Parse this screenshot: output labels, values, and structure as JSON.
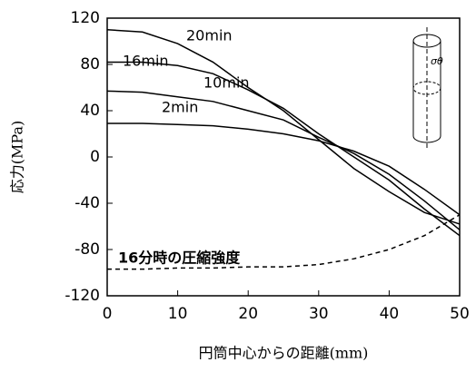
{
  "chart_data": {
    "type": "line",
    "x_label": "円筒中心からの距離(mm)",
    "y_label": "応力(MPa)",
    "x": [
      0,
      5,
      10,
      15,
      20,
      25,
      30,
      35,
      40,
      45,
      50
    ],
    "series": [
      {
        "name": "20min",
        "color": "#000000",
        "dash": false,
        "values": [
          110,
          108,
          98,
          82,
          60,
          40,
          15,
          -10,
          -30,
          -48,
          -58
        ]
      },
      {
        "name": "16min",
        "color": "#000000",
        "dash": false,
        "values": [
          82,
          82,
          79,
          72,
          58,
          42,
          20,
          0,
          -20,
          -45,
          -68
        ]
      },
      {
        "name": "10min",
        "color": "#000000",
        "dash": false,
        "values": [
          57,
          56,
          52,
          48,
          40,
          32,
          17,
          3,
          -15,
          -38,
          -63
        ]
      },
      {
        "name": "2min",
        "color": "#000000",
        "dash": false,
        "values": [
          29,
          29,
          28,
          27,
          24,
          20,
          14,
          5,
          -8,
          -28,
          -50
        ]
      },
      {
        "name": "16分時の圧縮強度",
        "color": "#000000",
        "dash": true,
        "values": [
          -97,
          -97,
          -96,
          -96,
          -95,
          -95,
          -93,
          -88,
          -80,
          -68,
          -50
        ]
      }
    ],
    "icon_label": "σθ",
    "xlim": [
      0,
      50
    ],
    "xticks": [
      0,
      10,
      20,
      30,
      40,
      50
    ],
    "ylim": [
      -120,
      120
    ],
    "yticks": [
      -120,
      -80,
      -40,
      0,
      40,
      80,
      120
    ]
  }
}
